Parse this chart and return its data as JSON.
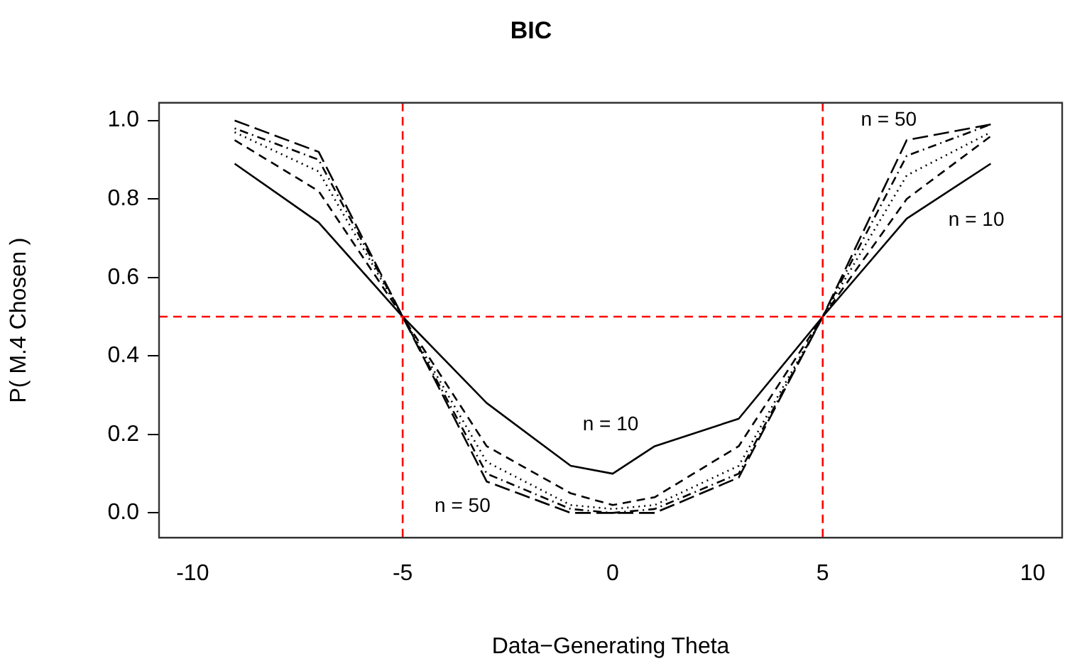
{
  "chart_data": {
    "type": "line",
    "title": "BIC",
    "xlabel": "Data−Generating Theta",
    "ylabel": "P( M.4 Chosen )",
    "x": [
      -9,
      -7,
      -5,
      -3,
      -1,
      0,
      1,
      3,
      5,
      7,
      9
    ],
    "series": [
      {
        "color": "#000000",
        "line_style": "solid",
        "values": [
          0.89,
          0.74,
          0.5,
          0.28,
          0.12,
          0.1,
          0.17,
          0.24,
          0.5,
          0.75,
          0.89
        ]
      },
      {
        "color": "#000000",
        "line_style": "dashed",
        "values": [
          0.95,
          0.82,
          0.5,
          0.17,
          0.05,
          0.02,
          0.04,
          0.17,
          0.5,
          0.8,
          0.96
        ]
      },
      {
        "color": "#000000",
        "line_style": "dotted",
        "values": [
          0.97,
          0.87,
          0.5,
          0.13,
          0.02,
          0.01,
          0.02,
          0.12,
          0.5,
          0.86,
          0.97
        ]
      },
      {
        "color": "#000000",
        "line_style": "dotdash",
        "values": [
          0.98,
          0.9,
          0.5,
          0.1,
          0.01,
          0.0,
          0.01,
          0.1,
          0.5,
          0.91,
          0.99
        ]
      },
      {
        "color": "#000000",
        "line_style": "longdash",
        "values": [
          1.0,
          0.92,
          0.5,
          0.08,
          0.0,
          0.0,
          0.0,
          0.09,
          0.5,
          0.95,
          0.99
        ]
      }
    ],
    "xlim": [
      -10.8,
      10.7
    ],
    "ylim": [
      -0.063,
      1.045
    ],
    "xticks": [
      -10,
      -5,
      0,
      5,
      10
    ],
    "yticks": [
      {
        "value": 0,
        "label": "0.0"
      },
      {
        "value": 0.2,
        "label": "0.2"
      },
      {
        "value": 0.4,
        "label": "0.4"
      },
      {
        "value": 0.6,
        "label": "0.6"
      },
      {
        "value": 0.8,
        "label": "0.8"
      },
      {
        "value": 1,
        "label": "1.0"
      }
    ],
    "ref_lines": [
      {
        "axis": "x",
        "value": -5,
        "color": "#ff0000",
        "line_style": "dashed"
      },
      {
        "axis": "x",
        "value": 5,
        "color": "#ff0000",
        "line_style": "dashed"
      },
      {
        "axis": "y",
        "value": 0.5,
        "color": "#ff0000",
        "line_style": "dashed"
      }
    ],
    "annotations": [
      "n = 50",
      "n = 10",
      "n = 50",
      "n = 10"
    ],
    "grid": false,
    "legend": false,
    "marker": "none"
  }
}
